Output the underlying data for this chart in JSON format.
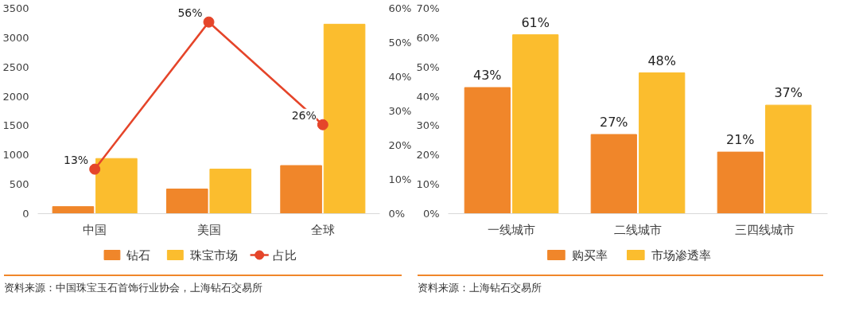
{
  "chart_data": [
    {
      "type": "bar",
      "categories": [
        "中国",
        "美国",
        "全球"
      ],
      "ylim": [
        0,
        3500
      ],
      "yticks": [
        0,
        500,
        1000,
        1500,
        2000,
        2500,
        3000,
        3500
      ],
      "y2lim": [
        0,
        60
      ],
      "y2ticks": [
        {
          "value": 0,
          "label": "0%"
        },
        {
          "value": 10,
          "label": "10%"
        },
        {
          "value": 20,
          "label": "20%"
        },
        {
          "value": 30,
          "label": "30%"
        },
        {
          "value": 40,
          "label": "40%"
        },
        {
          "value": 50,
          "label": "50%"
        },
        {
          "value": 60,
          "label": "60%"
        }
      ],
      "grid": false,
      "legend": "bottom",
      "marker": "circle",
      "series": [
        {
          "name": "钻石",
          "color": "#f0862a",
          "values": [
            120,
            420,
            820
          ]
        },
        {
          "name": "珠宝市场",
          "color": "#fbbd2e",
          "values": [
            940,
            760,
            3230
          ]
        },
        {
          "name": "占比",
          "type": "line",
          "axis": "y2",
          "color": "#e5452a",
          "values": [
            13,
            56,
            26
          ],
          "value_labels": [
            "13%",
            "56%",
            "26%"
          ]
        }
      ],
      "annotations": [
        "资料来源：中国珠宝玉石首饰行业协会，上海钻石交易所"
      ]
    },
    {
      "type": "bar",
      "categories": [
        "一线城市",
        "二线城市",
        "三四线城市"
      ],
      "ylim": [
        0,
        70
      ],
      "yticks": [
        {
          "value": 0,
          "label": "0%"
        },
        {
          "value": 10,
          "label": "10%"
        },
        {
          "value": 20,
          "label": "20%"
        },
        {
          "value": 30,
          "label": "30%"
        },
        {
          "value": 40,
          "label": "40%"
        },
        {
          "value": 50,
          "label": "50%"
        },
        {
          "value": 60,
          "label": "60%"
        },
        {
          "value": 70,
          "label": "70%"
        }
      ],
      "grid": false,
      "legend": "bottom",
      "series": [
        {
          "name": "购买率",
          "color": "#f0862a",
          "values": [
            43,
            27,
            21
          ],
          "value_labels": [
            "43%",
            "27%",
            "21%"
          ]
        },
        {
          "name": "市场渗透率",
          "color": "#fbbd2e",
          "values": [
            61,
            48,
            37
          ],
          "value_labels": [
            "61%",
            "48%",
            "37%"
          ]
        }
      ],
      "annotations": [
        "资料来源：上海钻石交易所"
      ]
    }
  ]
}
